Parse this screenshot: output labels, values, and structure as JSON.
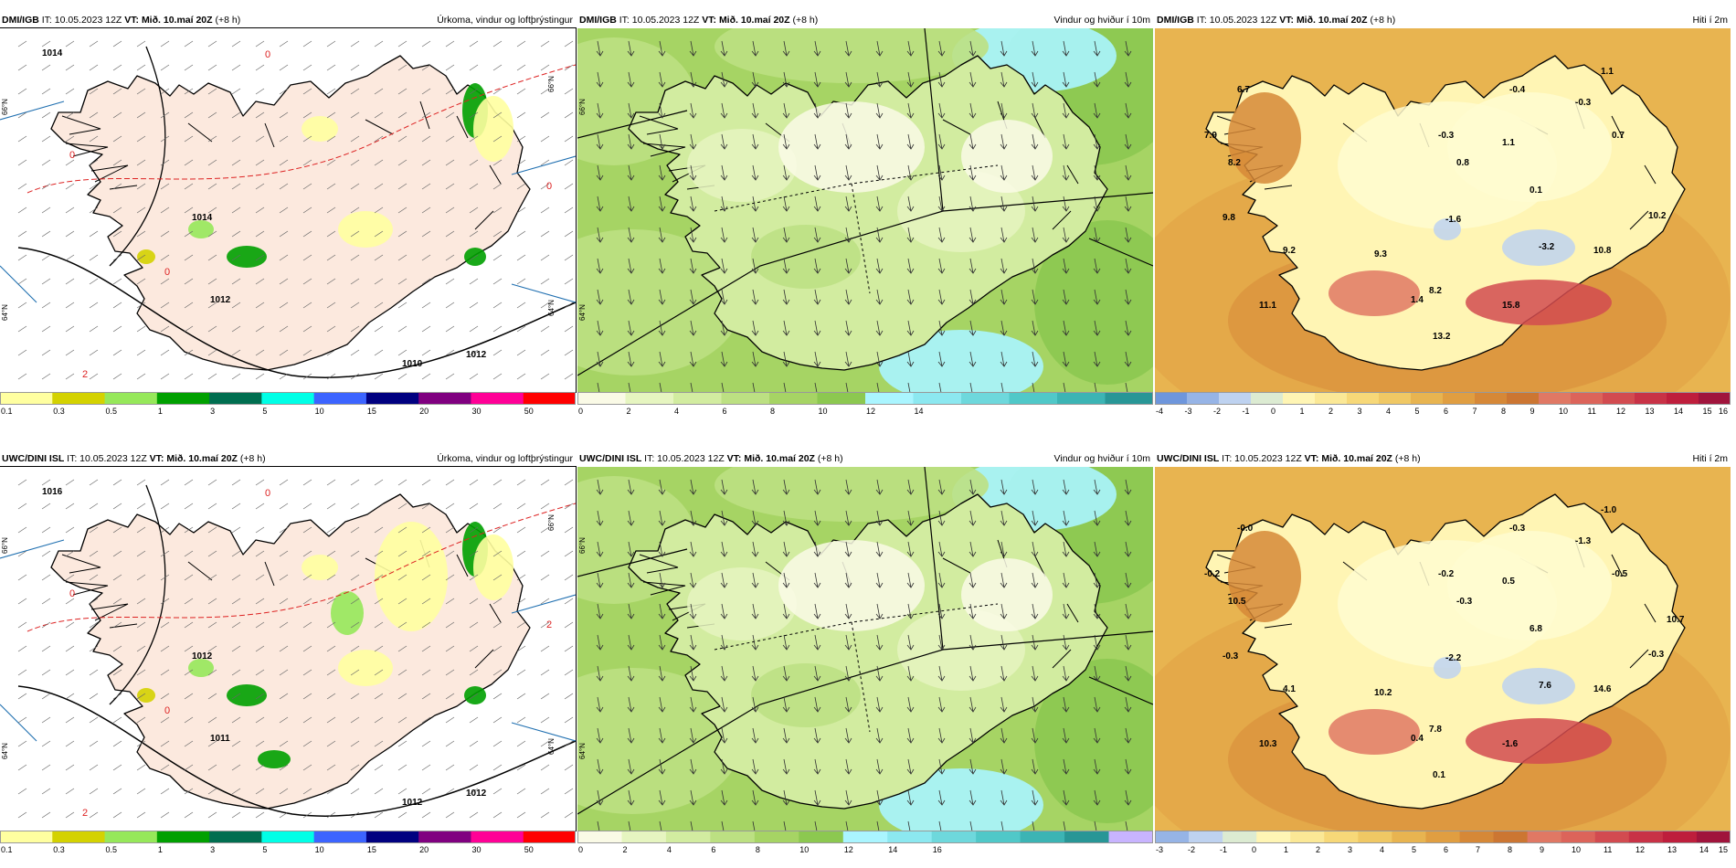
{
  "panels": [
    {
      "id": "dmi-precip",
      "model": "DMI/IGB",
      "init": "IT: 10.05.2023 12Z",
      "valid_label": "VT:",
      "valid": "Mið. 10.maí 20Z",
      "lead": "(+8 h)",
      "title": "Úrkoma, vindur og loftþrýstingur",
      "map_kind": "precip",
      "labels": [
        {
          "text": "1014",
          "kind": "isobar"
        },
        {
          "text": "1014",
          "kind": "isobar"
        },
        {
          "text": "1012",
          "kind": "isobar"
        },
        {
          "text": "1010",
          "kind": "isobar"
        },
        {
          "text": "1012",
          "kind": "isobar"
        },
        {
          "text": "0",
          "kind": "freeze"
        },
        {
          "text": "0",
          "kind": "freeze"
        },
        {
          "text": "0",
          "kind": "freeze"
        },
        {
          "text": "0",
          "kind": "freeze"
        },
        {
          "text": "2",
          "kind": "freeze"
        },
        {
          "text": "66°N",
          "kind": "lat"
        },
        {
          "text": "64°N",
          "kind": "lat"
        },
        {
          "text": "66°N",
          "kind": "lat"
        },
        {
          "text": "64°N",
          "kind": "lat"
        }
      ],
      "colorbar": {
        "colors": [
          "#ffffa0",
          "#d4d200",
          "#96e85a",
          "#00a000",
          "#006e50",
          "#00ffe6",
          "#3c64ff",
          "#000080",
          "#800080",
          "#ff0096",
          "#ff0000"
        ],
        "ticks": [
          "0.1",
          "0.3",
          "0.5",
          "1",
          "3",
          "5",
          "10",
          "15",
          "20",
          "30",
          "50"
        ]
      }
    },
    {
      "id": "dmi-wind",
      "model": "DMI/IGB",
      "init": "IT: 10.05.2023 12Z",
      "valid_label": "VT:",
      "valid": "Mið. 10.maí 20Z",
      "lead": "(+8 h)",
      "title": "Vindur og hviður í 10m",
      "map_kind": "wind",
      "labels": [
        {
          "text": "66°N",
          "kind": "lat"
        },
        {
          "text": "64°N",
          "kind": "lat"
        }
      ],
      "colorbar": {
        "colors": [
          "#fafae6",
          "#e6f5c0",
          "#d2eca0",
          "#bce082",
          "#a6d464",
          "#8cc850",
          "#aaf5ff",
          "#8ce8f0",
          "#6ed8dc",
          "#50c8c8",
          "#3cb4b4",
          "#289696"
        ],
        "ticks": [
          "0",
          "2",
          "4",
          "6",
          "8",
          "10",
          "12",
          "14"
        ]
      }
    },
    {
      "id": "dmi-temp",
      "model": "DMI/IGB",
      "init": "IT: 10.05.2023 12Z",
      "valid_label": "VT:",
      "valid": "Mið. 10.maí 20Z",
      "lead": "(+8 h)",
      "title": "Hiti í 2m",
      "map_kind": "temp",
      "labels": [
        {
          "text": "6.7",
          "kind": "t"
        },
        {
          "text": "7.9",
          "kind": "t"
        },
        {
          "text": "8.2",
          "kind": "t"
        },
        {
          "text": "9.8",
          "kind": "t"
        },
        {
          "text": "9.2",
          "kind": "t"
        },
        {
          "text": "11.1",
          "kind": "t"
        },
        {
          "text": "9.3",
          "kind": "t"
        },
        {
          "text": "8.2",
          "kind": "t"
        },
        {
          "text": "1.4",
          "kind": "t"
        },
        {
          "text": "13.2",
          "kind": "t"
        },
        {
          "text": "15.8",
          "kind": "t"
        },
        {
          "text": "-1.6",
          "kind": "t"
        },
        {
          "text": "-3.2",
          "kind": "t"
        },
        {
          "text": "10.8",
          "kind": "t"
        },
        {
          "text": "10.2",
          "kind": "t"
        },
        {
          "text": "0.7",
          "kind": "t"
        },
        {
          "text": "-0.3",
          "kind": "t"
        },
        {
          "text": "-0.4",
          "kind": "t"
        },
        {
          "text": "1.1",
          "kind": "t"
        },
        {
          "text": "-0.3",
          "kind": "t"
        },
        {
          "text": "1.1",
          "kind": "t"
        },
        {
          "text": "0.8",
          "kind": "t"
        },
        {
          "text": "0.1",
          "kind": "t"
        }
      ],
      "colorbar": {
        "colors": [
          "#6e96dc",
          "#96b4e6",
          "#bed2f0",
          "#dcebd2",
          "#fff5b4",
          "#fbe896",
          "#f7d878",
          "#f0c864",
          "#e8b450",
          "#e09e41",
          "#d68837",
          "#cc7632",
          "#e07864",
          "#dc645a",
          "#d24b50",
          "#c83246",
          "#be1e3c",
          "#a0143c"
        ],
        "ticks": [
          "-4",
          "-3",
          "-2",
          "-1",
          "0",
          "1",
          "2",
          "3",
          "4",
          "5",
          "6",
          "7",
          "8",
          "9",
          "10",
          "11",
          "12",
          "13",
          "14",
          "15",
          "16"
        ]
      }
    },
    {
      "id": "uwc-precip",
      "model": "UWC/DINI ISL",
      "init": "IT: 10.05.2023 12Z",
      "valid_label": "VT:",
      "valid": "Mið. 10.maí 20Z",
      "lead": "(+8 h)",
      "title": "Úrkoma, vindur og loftþrýstingur",
      "map_kind": "precip",
      "labels": [
        {
          "text": "1016",
          "kind": "isobar"
        },
        {
          "text": "1012",
          "kind": "isobar"
        },
        {
          "text": "1011",
          "kind": "isobar"
        },
        {
          "text": "1012",
          "kind": "isobar"
        },
        {
          "text": "1012",
          "kind": "isobar"
        },
        {
          "text": "0",
          "kind": "freeze"
        },
        {
          "text": "0",
          "kind": "freeze"
        },
        {
          "text": "0",
          "kind": "freeze"
        },
        {
          "text": "2",
          "kind": "freeze"
        },
        {
          "text": "2",
          "kind": "freeze"
        },
        {
          "text": "66°N",
          "kind": "lat"
        },
        {
          "text": "64°N",
          "kind": "lat"
        },
        {
          "text": "66°N",
          "kind": "lat"
        },
        {
          "text": "64°N",
          "kind": "lat"
        }
      ],
      "colorbar": {
        "colors": [
          "#ffffa0",
          "#d4d200",
          "#96e85a",
          "#00a000",
          "#006e50",
          "#00ffe6",
          "#3c64ff",
          "#000080",
          "#800080",
          "#ff0096",
          "#ff0000"
        ],
        "ticks": [
          "0.1",
          "0.3",
          "0.5",
          "1",
          "3",
          "5",
          "10",
          "15",
          "20",
          "30",
          "50"
        ]
      }
    },
    {
      "id": "uwc-wind",
      "model": "UWC/DINI ISL",
      "init": "IT: 10.05.2023 12Z",
      "valid_label": "VT:",
      "valid": "Mið. 10.maí 20Z",
      "lead": "(+8 h)",
      "title": "Vindur og hviður í 10m",
      "map_kind": "wind",
      "labels": [
        {
          "text": "66°N",
          "kind": "lat"
        },
        {
          "text": "64°N",
          "kind": "lat"
        }
      ],
      "colorbar": {
        "colors": [
          "#fafae6",
          "#e6f5c0",
          "#d2eca0",
          "#bce082",
          "#a6d464",
          "#8cc850",
          "#aaf5ff",
          "#8ce8f0",
          "#6ed8dc",
          "#50c8c8",
          "#3cb4b4",
          "#289696",
          "#c8b4ff"
        ],
        "ticks": [
          "0",
          "2",
          "4",
          "6",
          "8",
          "10",
          "12",
          "14",
          "16"
        ]
      }
    },
    {
      "id": "uwc-temp",
      "model": "UWC/DINI ISL",
      "init": "IT: 10.05.2023 12Z",
      "valid_label": "VT:",
      "valid": "Mið. 10.maí 20Z",
      "lead": "(+8 h)",
      "title": "Hiti í 2m",
      "map_kind": "temp",
      "labels": [
        {
          "text": "-0.0",
          "kind": "t"
        },
        {
          "text": "-0.2",
          "kind": "t"
        },
        {
          "text": "10.5",
          "kind": "t"
        },
        {
          "text": "-0.3",
          "kind": "t"
        },
        {
          "text": "4.1",
          "kind": "t"
        },
        {
          "text": "10.3",
          "kind": "t"
        },
        {
          "text": "10.2",
          "kind": "t"
        },
        {
          "text": "7.8",
          "kind": "t"
        },
        {
          "text": "0.4",
          "kind": "t"
        },
        {
          "text": "0.1",
          "kind": "t"
        },
        {
          "text": "-1.6",
          "kind": "t"
        },
        {
          "text": "-2.2",
          "kind": "t"
        },
        {
          "text": "7.6",
          "kind": "t"
        },
        {
          "text": "14.6",
          "kind": "t"
        },
        {
          "text": "-0.3",
          "kind": "t"
        },
        {
          "text": "-0.5",
          "kind": "t"
        },
        {
          "text": "-0.2",
          "kind": "t"
        },
        {
          "text": "-0.3",
          "kind": "t"
        },
        {
          "text": "-1.0",
          "kind": "t"
        },
        {
          "text": "-1.3",
          "kind": "t"
        },
        {
          "text": "0.5",
          "kind": "t"
        },
        {
          "text": "-0.3",
          "kind": "t"
        },
        {
          "text": "6.8",
          "kind": "t"
        },
        {
          "text": "10.7",
          "kind": "t"
        }
      ],
      "colorbar": {
        "colors": [
          "#96b4e6",
          "#bed2f0",
          "#dcebd2",
          "#fff5b4",
          "#fbe896",
          "#f7d878",
          "#f0c864",
          "#e8b450",
          "#e09e41",
          "#d68837",
          "#cc7632",
          "#e07864",
          "#dc645a",
          "#d24b50",
          "#c83246",
          "#be1e3c",
          "#a0143c"
        ],
        "ticks": [
          "-3",
          "-2",
          "-1",
          "0",
          "1",
          "2",
          "3",
          "4",
          "5",
          "6",
          "7",
          "8",
          "9",
          "10",
          "11",
          "12",
          "13",
          "14",
          "15"
        ]
      }
    }
  ]
}
